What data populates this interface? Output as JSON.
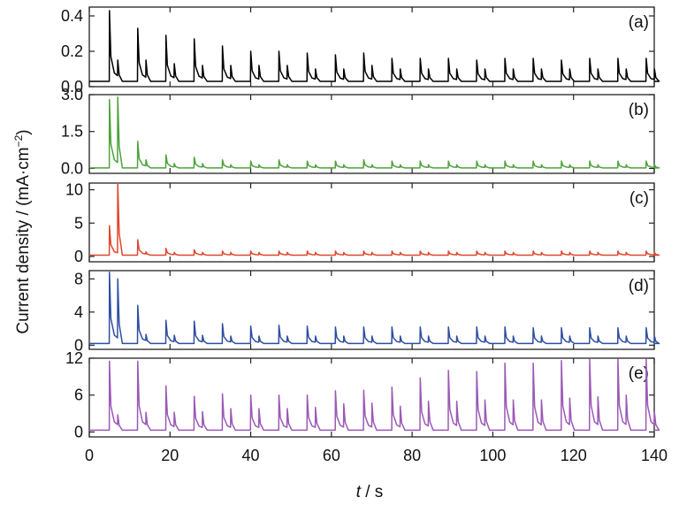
{
  "chart_data": {
    "type": "line",
    "x_axis": {
      "label_italic": "t",
      "label_rest": " / s",
      "range": [
        0,
        140
      ],
      "ticks": [
        0,
        20,
        40,
        60,
        80,
        100,
        120,
        140
      ]
    },
    "y_axis": {
      "label_main": "Current density / (mA",
      "label_dot": "·",
      "label_cm": "cm",
      "label_exp": "−2",
      "label_close": ")"
    },
    "grid": false,
    "legend": "none",
    "spike_times": [
      5,
      12,
      19,
      26,
      33,
      40,
      47,
      54,
      61,
      68,
      75,
      82,
      89,
      96,
      103,
      110,
      117,
      124,
      131,
      138
    ],
    "panels": [
      {
        "label": "(a)",
        "color": "#000000",
        "ylim": [
          0,
          0.45
        ],
        "yticks": [
          0,
          0.2,
          0.4
        ],
        "ytick_labels": [
          "0.0",
          "0.2",
          "0.4"
        ],
        "baseline": 0.03,
        "primary_peaks": [
          0.43,
          0.33,
          0.29,
          0.27,
          0.23,
          0.2,
          0.2,
          0.19,
          0.18,
          0.19,
          0.16,
          0.16,
          0.16,
          0.15,
          0.16,
          0.16,
          0.15,
          0.16,
          0.16,
          0.16
        ],
        "secondary_peaks": [
          0.15,
          0.15,
          0.13,
          0.12,
          0.12,
          0.12,
          0.12,
          0.1,
          0.1,
          0.12,
          0.1,
          0.1,
          0.1,
          0.1,
          0.1,
          0.1,
          0.1,
          0.1,
          0.1,
          0.1
        ]
      },
      {
        "label": "(b)",
        "color": "#4ea23a",
        "ylim": [
          -0.2,
          3.0
        ],
        "yticks": [
          0,
          1.5,
          3
        ],
        "ytick_labels": [
          "0.0",
          "1.5",
          "3.0"
        ],
        "baseline": 0.02,
        "primary_peaks": [
          2.8,
          1.1,
          0.55,
          0.45,
          0.35,
          0.3,
          0.35,
          0.3,
          0.3,
          0.35,
          0.3,
          0.3,
          0.3,
          0.3,
          0.3,
          0.3,
          0.3,
          0.3,
          0.3,
          0.3
        ],
        "secondary_peaks": [
          2.9,
          0.35,
          0.2,
          0.2,
          0.15,
          0.15,
          0.15,
          0.15,
          0.15,
          0.15,
          0.15,
          0.15,
          0.15,
          0.15,
          0.15,
          0.15,
          0.15,
          0.15,
          0.15,
          0.15
        ]
      },
      {
        "label": "(c)",
        "color": "#e0472e",
        "ylim": [
          -0.8,
          11
        ],
        "yticks": [
          0,
          5,
          10
        ],
        "ytick_labels": [
          "0",
          "5",
          "10"
        ],
        "baseline": 0.2,
        "primary_peaks": [
          4.6,
          2.5,
          1.2,
          1.0,
          0.8,
          0.8,
          0.8,
          0.8,
          0.8,
          0.8,
          0.8,
          0.8,
          0.8,
          0.8,
          0.8,
          0.8,
          0.8,
          0.8,
          0.8,
          0.8
        ],
        "secondary_peaks": [
          11,
          0.7,
          0.6,
          0.6,
          0.6,
          0.6,
          0.6,
          0.6,
          0.6,
          0.6,
          0.6,
          0.6,
          0.6,
          0.6,
          0.6,
          0.6,
          0.6,
          0.6,
          0.6,
          0.6
        ]
      },
      {
        "label": "(d)",
        "color": "#2f4ea1",
        "ylim": [
          -0.5,
          9
        ],
        "yticks": [
          0,
          4,
          8
        ],
        "ytick_labels": [
          "0",
          "4",
          "8"
        ],
        "baseline": 0.2,
        "primary_peaks": [
          8.8,
          4.8,
          3.0,
          2.9,
          2.6,
          2.3,
          2.4,
          2.3,
          2.2,
          2.2,
          2.2,
          2.2,
          2.2,
          2.2,
          2.2,
          2.1,
          2.1,
          2.1,
          2.1,
          2.1
        ],
        "secondary_peaks": [
          8.0,
          1.3,
          1.2,
          1.2,
          1.1,
          1.1,
          1.1,
          1.1,
          1.1,
          1.1,
          1.1,
          1.1,
          1.1,
          1.1,
          1.1,
          1.1,
          1.1,
          1.1,
          1.1,
          1.1
        ]
      },
      {
        "label": "(e)",
        "color": "#9b59b6",
        "ylim": [
          -0.8,
          12
        ],
        "yticks": [
          0,
          6,
          12
        ],
        "ytick_labels": [
          "0",
          "6",
          "12"
        ],
        "baseline": 0.3,
        "primary_peaks": [
          11.5,
          11.5,
          7.5,
          5.8,
          6.2,
          6.0,
          6.0,
          6.0,
          6.7,
          6.8,
          7.3,
          8.8,
          10.0,
          9.8,
          11.2,
          11.2,
          11.6,
          11.8,
          11.8,
          11.8
        ],
        "secondary_peaks": [
          2.8,
          3.2,
          3.2,
          3.3,
          3.8,
          3.8,
          3.8,
          4.0,
          4.6,
          4.7,
          4.2,
          5.0,
          5.0,
          5.2,
          5.2,
          5.2,
          5.5,
          5.7,
          6.0,
          3.2
        ]
      }
    ]
  }
}
